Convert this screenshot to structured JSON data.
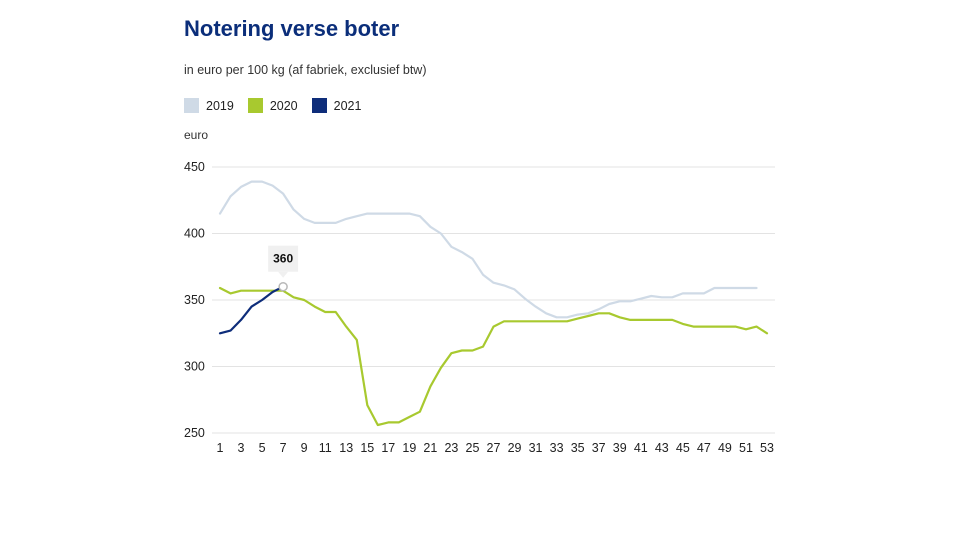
{
  "chart_data": {
    "type": "line",
    "title": "Notering verse boter",
    "subtitle": "in euro per 100 kg (af fabriek, exclusief btw)",
    "ylabel": "euro",
    "xlabel": "",
    "xlim": [
      1,
      53
    ],
    "ylim": [
      250,
      450
    ],
    "x_ticks": [
      1,
      3,
      5,
      7,
      9,
      11,
      13,
      15,
      17,
      19,
      21,
      23,
      25,
      27,
      29,
      31,
      33,
      35,
      37,
      39,
      41,
      43,
      45,
      47,
      49,
      51,
      53
    ],
    "y_ticks": [
      250,
      300,
      350,
      400,
      450
    ],
    "grid": true,
    "legend_position": "top-left",
    "tooltip": {
      "series": "2021",
      "x": 7,
      "label": "360"
    },
    "series": [
      {
        "name": "2019",
        "color": "#cfdae6",
        "x": [
          1,
          2,
          3,
          4,
          5,
          6,
          7,
          8,
          9,
          10,
          11,
          12,
          13,
          14,
          15,
          16,
          17,
          18,
          19,
          20,
          21,
          22,
          23,
          24,
          25,
          26,
          27,
          28,
          29,
          30,
          31,
          32,
          33,
          34,
          35,
          36,
          37,
          38,
          39,
          40,
          41,
          42,
          43,
          44,
          45,
          46,
          47,
          48,
          49,
          50,
          51,
          52
        ],
        "values": [
          415,
          428,
          435,
          439,
          439,
          436,
          430,
          418,
          411,
          408,
          408,
          408,
          411,
          413,
          415,
          415,
          415,
          415,
          415,
          413,
          405,
          400,
          390,
          386,
          381,
          369,
          363,
          361,
          358,
          351,
          345,
          340,
          337,
          337,
          339,
          340,
          343,
          347,
          349,
          349,
          351,
          353,
          352,
          352,
          355,
          355,
          355,
          359,
          359,
          359,
          359,
          359
        ]
      },
      {
        "name": "2020",
        "color": "#a8c92f",
        "x": [
          1,
          2,
          3,
          4,
          5,
          6,
          7,
          8,
          9,
          10,
          11,
          12,
          13,
          14,
          15,
          16,
          17,
          18,
          19,
          20,
          21,
          22,
          23,
          24,
          25,
          26,
          27,
          28,
          29,
          30,
          31,
          32,
          33,
          34,
          35,
          36,
          37,
          38,
          39,
          40,
          41,
          42,
          43,
          44,
          45,
          46,
          47,
          48,
          49,
          50,
          51,
          52,
          53
        ],
        "values": [
          359,
          355,
          357,
          357,
          357,
          357,
          357,
          352,
          350,
          345,
          341,
          341,
          330,
          320,
          271,
          256,
          258,
          258,
          262,
          266,
          285,
          299,
          310,
          312,
          312,
          315,
          330,
          334,
          334,
          334,
          334,
          334,
          334,
          334,
          336,
          338,
          340,
          340,
          337,
          335,
          335,
          335,
          335,
          335,
          332,
          330,
          330,
          330,
          330,
          330,
          328,
          330,
          325
        ]
      },
      {
        "name": "2021",
        "color": "#0e2d7a",
        "x": [
          1,
          2,
          3,
          4,
          5,
          6,
          7
        ],
        "values": [
          325,
          327,
          335,
          345,
          350,
          356,
          360
        ]
      }
    ]
  }
}
